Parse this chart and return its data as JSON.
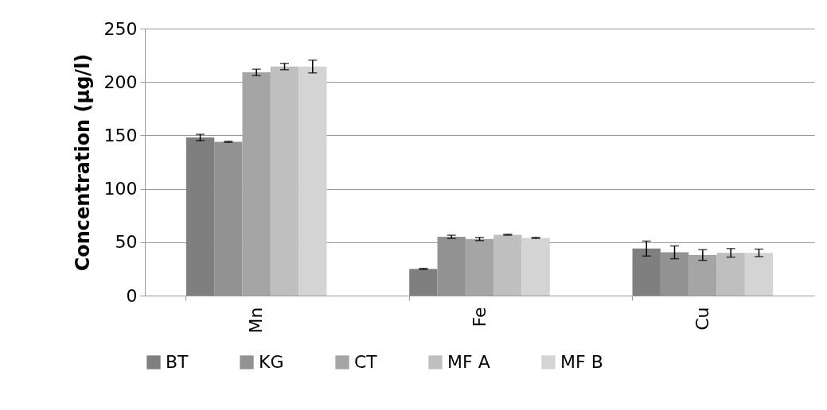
{
  "chart_data": {
    "type": "bar",
    "ylabel": "Concentration (µg/l)",
    "categories": [
      "Mn",
      "Fe",
      "Cu"
    ],
    "series": [
      {
        "name": "BT",
        "color": "#7f7f7f",
        "values": [
          148,
          25,
          44
        ],
        "errors": [
          3,
          0.5,
          7
        ]
      },
      {
        "name": "KG",
        "color": "#929292",
        "values": [
          144,
          55,
          40.5
        ],
        "errors": [
          0.5,
          1.5,
          6
        ]
      },
      {
        "name": "CT",
        "color": "#a5a5a5",
        "values": [
          209,
          53,
          38
        ],
        "errors": [
          3,
          1.5,
          5
        ]
      },
      {
        "name": "MF A",
        "color": "#bfbfbf",
        "values": [
          214.5,
          57,
          40
        ],
        "errors": [
          3,
          0.5,
          4
        ]
      },
      {
        "name": "MF B",
        "color": "#d4d4d4",
        "values": [
          214.5,
          54,
          40
        ],
        "errors": [
          6,
          0.5,
          3.5
        ]
      }
    ],
    "ylim": [
      0,
      250
    ],
    "yticks": [
      0,
      50,
      100,
      150,
      200,
      250
    ],
    "grid": "y",
    "legend": "bottom"
  }
}
